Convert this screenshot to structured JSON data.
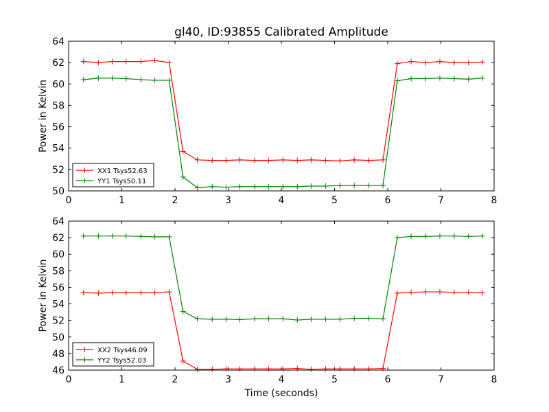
{
  "title": "gl40, ID:93855 Calibrated Amplitude",
  "chart_data": [
    {
      "type": "line",
      "ylabel": "Power in Kelvin",
      "xlabel": "",
      "xlim": [
        0,
        8
      ],
      "ylim": [
        50,
        64
      ],
      "xticks": [
        "0",
        "1",
        "2",
        "3",
        "4",
        "5",
        "6",
        "7",
        "8"
      ],
      "yticks": [
        "50",
        "52",
        "54",
        "56",
        "58",
        "60",
        "62",
        "64"
      ],
      "legend_position": "lower-left",
      "x": [
        0.28,
        0.56,
        0.82,
        1.08,
        1.36,
        1.62,
        1.89,
        2.15,
        2.42,
        2.7,
        2.96,
        3.22,
        3.5,
        3.76,
        4.03,
        4.3,
        4.56,
        4.83,
        5.1,
        5.37,
        5.64,
        5.91,
        6.18,
        6.44,
        6.71,
        6.98,
        7.25,
        7.52,
        7.78
      ],
      "series": [
        {
          "name": "XX1 Tsys52.63",
          "color": "#ff0000",
          "values": [
            62.1,
            62.0,
            62.1,
            62.1,
            62.1,
            62.2,
            62.0,
            53.7,
            52.9,
            52.85,
            52.85,
            52.9,
            52.85,
            52.85,
            52.9,
            52.85,
            52.9,
            52.85,
            52.8,
            52.9,
            52.85,
            52.9,
            61.9,
            62.1,
            62.0,
            62.1,
            62.0,
            62.0,
            62.05
          ]
        },
        {
          "name": "YY1 Tsys50.11",
          "color": "#008000",
          "values": [
            60.4,
            60.55,
            60.55,
            60.5,
            60.4,
            60.35,
            60.35,
            51.3,
            50.3,
            50.4,
            50.35,
            50.4,
            50.4,
            50.4,
            50.4,
            50.4,
            50.45,
            50.45,
            50.5,
            50.5,
            50.5,
            50.5,
            60.3,
            60.5,
            60.5,
            60.55,
            60.5,
            60.45,
            60.55
          ]
        }
      ]
    },
    {
      "type": "line",
      "ylabel": "Power in Kelvin",
      "xlabel": "Time (seconds)",
      "xlim": [
        0,
        8
      ],
      "ylim": [
        46,
        64
      ],
      "xticks": [
        "0",
        "1",
        "2",
        "3",
        "4",
        "5",
        "6",
        "7",
        "8"
      ],
      "yticks": [
        "46",
        "48",
        "50",
        "52",
        "54",
        "56",
        "58",
        "60",
        "62",
        "64"
      ],
      "legend_position": "lower-left",
      "x": [
        0.28,
        0.56,
        0.82,
        1.08,
        1.36,
        1.62,
        1.89,
        2.15,
        2.42,
        2.7,
        2.96,
        3.22,
        3.5,
        3.76,
        4.03,
        4.3,
        4.56,
        4.83,
        5.1,
        5.37,
        5.64,
        5.91,
        6.18,
        6.44,
        6.71,
        6.98,
        7.25,
        7.52,
        7.78
      ],
      "series": [
        {
          "name": "XX2 Tsys46.09",
          "color": "#ff0000",
          "values": [
            55.35,
            55.3,
            55.35,
            55.35,
            55.35,
            55.35,
            55.45,
            47.1,
            46.1,
            46.1,
            46.15,
            46.15,
            46.15,
            46.15,
            46.15,
            46.2,
            46.1,
            46.15,
            46.15,
            46.15,
            46.15,
            46.2,
            55.3,
            55.4,
            55.45,
            55.45,
            55.4,
            55.4,
            55.35
          ]
        },
        {
          "name": "YY2 Tsys52.03",
          "color": "#008000",
          "values": [
            62.2,
            62.2,
            62.2,
            62.2,
            62.15,
            62.1,
            62.1,
            53.1,
            52.2,
            52.15,
            52.15,
            52.1,
            52.2,
            52.2,
            52.2,
            52.05,
            52.15,
            52.15,
            52.15,
            52.25,
            52.25,
            52.2,
            62.0,
            62.15,
            62.15,
            62.2,
            62.2,
            62.15,
            62.2
          ]
        }
      ]
    }
  ]
}
